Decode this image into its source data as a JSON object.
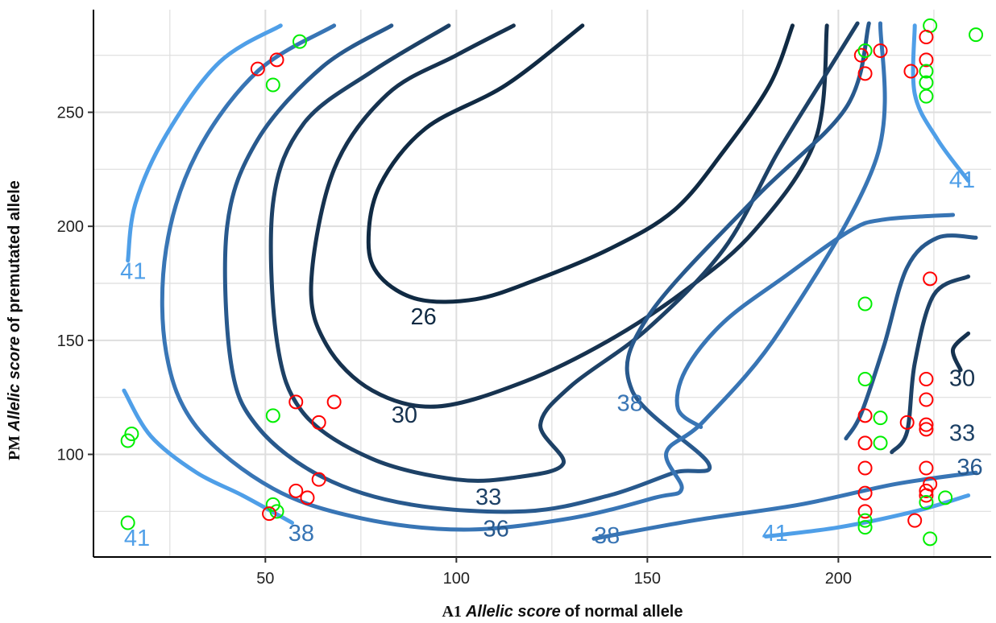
{
  "chart_data": {
    "type": "scatter",
    "subtype": "contour-with-points",
    "title": "",
    "x_axis": {
      "title_prefix": "A1",
      "title_italic": "Allelic score",
      "title_suffix": "of normal allele",
      "range": [
        5,
        240
      ],
      "ticks": [
        50,
        100,
        150,
        200
      ],
      "tick_labels": [
        "50",
        "100",
        "150",
        "200"
      ]
    },
    "y_axis": {
      "title_prefix": "PM",
      "title_italic": "Allelic score",
      "title_suffix": "of premutated allele",
      "range": [
        55,
        295
      ],
      "ticks": [
        100,
        150,
        200,
        250
      ],
      "tick_labels": [
        "100",
        "150",
        "200",
        "250"
      ]
    },
    "grid": true,
    "colors": {
      "red": "#ff0000",
      "green": "#00ee00",
      "level_26": "#102a43",
      "level_30": "#16324f",
      "level_33": "#1d4166",
      "level_36": "#28598d",
      "level_38": "#3875b5",
      "level_41": "#4f9fe8"
    },
    "contours": [
      {
        "level": 26,
        "color": "#102a43",
        "label": "26",
        "label_at": [
          88,
          157
        ],
        "points": [
          [
            133,
            288
          ],
          [
            113,
            262
          ],
          [
            92,
            243
          ],
          [
            80,
            218
          ],
          [
            77,
            193
          ],
          [
            80,
            178
          ],
          [
            90,
            168
          ],
          [
            105,
            168
          ],
          [
            120,
            176
          ],
          [
            140,
            190
          ],
          [
            157,
            207
          ],
          [
            170,
            233
          ],
          [
            182,
            262
          ],
          [
            188,
            288
          ]
        ]
      },
      {
        "level": 30,
        "color": "#16324f",
        "label": "30",
        "label_at": [
          83,
          114
        ],
        "points": [
          [
            115,
            288
          ],
          [
            100,
            275
          ],
          [
            82,
            258
          ],
          [
            68,
            225
          ],
          [
            62,
            175
          ],
          [
            66,
            148
          ],
          [
            78,
            128
          ],
          [
            95,
            121
          ],
          [
            118,
            132
          ],
          [
            140,
            150
          ],
          [
            160,
            172
          ],
          [
            178,
            198
          ],
          [
            194,
            238
          ],
          [
            197,
            288
          ]
        ]
      },
      {
        "level": 33,
        "color": "#1d4166",
        "label": "33",
        "label_at": [
          105,
          78
        ],
        "points": [
          [
            98,
            288
          ],
          [
            78,
            268
          ],
          [
            60,
            245
          ],
          [
            52,
            210
          ],
          [
            53,
            150
          ],
          [
            60,
            118
          ],
          [
            78,
            98
          ],
          [
            100,
            89
          ],
          [
            116,
            90
          ],
          [
            128,
            96
          ],
          [
            122,
            113
          ],
          [
            130,
            130
          ],
          [
            150,
            155
          ],
          [
            170,
            190
          ],
          [
            184,
            232
          ],
          [
            195,
            262
          ],
          [
            205,
            289
          ]
        ]
      },
      {
        "level": 36,
        "color": "#28598d",
        "label": "36",
        "label_at": [
          107,
          64
        ],
        "points": [
          [
            83,
            288
          ],
          [
            65,
            270
          ],
          [
            48,
            238
          ],
          [
            40,
            200
          ],
          [
            41,
            140
          ],
          [
            48,
            112
          ],
          [
            65,
            90
          ],
          [
            88,
            78
          ],
          [
            118,
            75
          ],
          [
            140,
            82
          ],
          [
            157,
            92
          ],
          [
            166,
            96
          ],
          [
            146,
            128
          ],
          [
            150,
            160
          ],
          [
            178,
            212
          ],
          [
            202,
            252
          ],
          [
            208,
            289
          ]
        ]
      },
      {
        "level": 38,
        "color": "#3875b5",
        "label": "38",
        "label_at": [
          56,
          62
        ],
        "points": [
          [
            68,
            288
          ],
          [
            48,
            268
          ],
          [
            32,
            232
          ],
          [
            24,
            190
          ],
          [
            24,
            145
          ],
          [
            32,
            112
          ],
          [
            52,
            85
          ],
          [
            75,
            72
          ],
          [
            102,
            67
          ],
          [
            130,
            72
          ],
          [
            152,
            81
          ],
          [
            159,
            85
          ],
          [
            155,
            101
          ],
          [
            165,
            115
          ],
          [
            185,
            155
          ],
          [
            210,
            230
          ],
          [
            211,
            289
          ]
        ]
      },
      {
        "level": 41,
        "color": "#4f9fe8",
        "label": "41",
        "label_at": [
          12,
          177
        ],
        "points": [
          [
            54,
            288
          ],
          [
            38,
            272
          ],
          [
            24,
            240
          ],
          [
            16,
            210
          ],
          [
            14,
            185
          ]
        ]
      },
      {
        "level": 41,
        "color": "#4f9fe8",
        "label": "41",
        "label_at": [
          13,
          60
        ],
        "points": [
          [
            13,
            128
          ],
          [
            20,
            108
          ],
          [
            32,
            92
          ],
          [
            44,
            82
          ],
          [
            57,
            70
          ]
        ]
      },
      {
        "level": 38,
        "color": "#3875b5",
        "label": "38",
        "label_at": [
          136,
          61
        ],
        "points": [
          [
            136,
            63
          ],
          [
            162,
            71
          ],
          [
            190,
            78
          ],
          [
            215,
            87
          ],
          [
            236,
            92
          ]
        ]
      },
      {
        "level": 41,
        "color": "#4f9fe8",
        "label": "41",
        "label_at": [
          180,
          62
        ],
        "points": [
          [
            181,
            64
          ],
          [
            200,
            68
          ],
          [
            220,
            75
          ],
          [
            234,
            82
          ]
        ]
      },
      {
        "level": 38,
        "color": "#3875b5",
        "label": "38",
        "label_at": [
          142,
          119
        ],
        "points": [
          [
            164,
            112
          ],
          [
            158,
            120
          ],
          [
            160,
            137
          ],
          [
            170,
            158
          ],
          [
            186,
            178
          ],
          [
            203,
            198
          ],
          [
            212,
            203
          ],
          [
            230,
            205
          ]
        ]
      },
      {
        "level": 36,
        "color": "#28598d",
        "label": "36",
        "label_at": [
          231,
          91
        ],
        "points": [
          [
            202,
            107
          ],
          [
            206,
            118
          ],
          [
            212,
            148
          ],
          [
            218,
            182
          ],
          [
            226,
            195
          ],
          [
            236,
            195
          ]
        ]
      },
      {
        "level": 33,
        "color": "#1d4166",
        "label": "33",
        "label_at": [
          229,
          106
        ],
        "points": [
          [
            214,
            101
          ],
          [
            218,
            110
          ],
          [
            220,
            140
          ],
          [
            225,
            170
          ],
          [
            234,
            178
          ]
        ]
      },
      {
        "level": 30,
        "color": "#16324f",
        "label": "30",
        "label_at": [
          229,
          130
        ],
        "points": [
          [
            234,
            153
          ],
          [
            230,
            146
          ],
          [
            232,
            137
          ]
        ]
      },
      {
        "level": 41,
        "color": "#4f9fe8",
        "label": "41",
        "label_at": [
          229,
          217
        ],
        "points": [
          [
            220,
            288
          ],
          [
            220,
            258
          ],
          [
            226,
            238
          ],
          [
            234,
            220
          ]
        ]
      }
    ],
    "points": [
      {
        "x": 48,
        "y": 269,
        "color": "red"
      },
      {
        "x": 53,
        "y": 273,
        "color": "red"
      },
      {
        "x": 59,
        "y": 281,
        "color": "green"
      },
      {
        "x": 52,
        "y": 262,
        "color": "green"
      },
      {
        "x": 58,
        "y": 123,
        "color": "red"
      },
      {
        "x": 64,
        "y": 114,
        "color": "red"
      },
      {
        "x": 68,
        "y": 123,
        "color": "red"
      },
      {
        "x": 52,
        "y": 117,
        "color": "green"
      },
      {
        "x": 15,
        "y": 109,
        "color": "green"
      },
      {
        "x": 14,
        "y": 106,
        "color": "green"
      },
      {
        "x": 14,
        "y": 70,
        "color": "green"
      },
      {
        "x": 58,
        "y": 84,
        "color": "red"
      },
      {
        "x": 64,
        "y": 89,
        "color": "red"
      },
      {
        "x": 61,
        "y": 81,
        "color": "red"
      },
      {
        "x": 52,
        "y": 78,
        "color": "green"
      },
      {
        "x": 53,
        "y": 75,
        "color": "green"
      },
      {
        "x": 51,
        "y": 74,
        "color": "red"
      },
      {
        "x": 206,
        "y": 275,
        "color": "red"
      },
      {
        "x": 207,
        "y": 277,
        "color": "green"
      },
      {
        "x": 207,
        "y": 267,
        "color": "red"
      },
      {
        "x": 211,
        "y": 277,
        "color": "red"
      },
      {
        "x": 219,
        "y": 268,
        "color": "red"
      },
      {
        "x": 224,
        "y": 288,
        "color": "green"
      },
      {
        "x": 223,
        "y": 283,
        "color": "red"
      },
      {
        "x": 223,
        "y": 273,
        "color": "red"
      },
      {
        "x": 223,
        "y": 268,
        "color": "green"
      },
      {
        "x": 223,
        "y": 263,
        "color": "green"
      },
      {
        "x": 223,
        "y": 257,
        "color": "green"
      },
      {
        "x": 236,
        "y": 284,
        "color": "green"
      },
      {
        "x": 224,
        "y": 177,
        "color": "red"
      },
      {
        "x": 207,
        "y": 166,
        "color": "green"
      },
      {
        "x": 207,
        "y": 133,
        "color": "green"
      },
      {
        "x": 223,
        "y": 133,
        "color": "red"
      },
      {
        "x": 223,
        "y": 124,
        "color": "red"
      },
      {
        "x": 207,
        "y": 117,
        "color": "red"
      },
      {
        "x": 211,
        "y": 116,
        "color": "green"
      },
      {
        "x": 218,
        "y": 114,
        "color": "red"
      },
      {
        "x": 223,
        "y": 113,
        "color": "red"
      },
      {
        "x": 223,
        "y": 111,
        "color": "red"
      },
      {
        "x": 207,
        "y": 105,
        "color": "red"
      },
      {
        "x": 211,
        "y": 105,
        "color": "green"
      },
      {
        "x": 207,
        "y": 94,
        "color": "red"
      },
      {
        "x": 223,
        "y": 94,
        "color": "red"
      },
      {
        "x": 224,
        "y": 87,
        "color": "red"
      },
      {
        "x": 207,
        "y": 83,
        "color": "red"
      },
      {
        "x": 223,
        "y": 84,
        "color": "red"
      },
      {
        "x": 223,
        "y": 82,
        "color": "red"
      },
      {
        "x": 223,
        "y": 79,
        "color": "green"
      },
      {
        "x": 228,
        "y": 81,
        "color": "green"
      },
      {
        "x": 207,
        "y": 75,
        "color": "red"
      },
      {
        "x": 207,
        "y": 71,
        "color": "green"
      },
      {
        "x": 207,
        "y": 68,
        "color": "green"
      },
      {
        "x": 220,
        "y": 71,
        "color": "red"
      },
      {
        "x": 224,
        "y": 63,
        "color": "green"
      }
    ]
  }
}
